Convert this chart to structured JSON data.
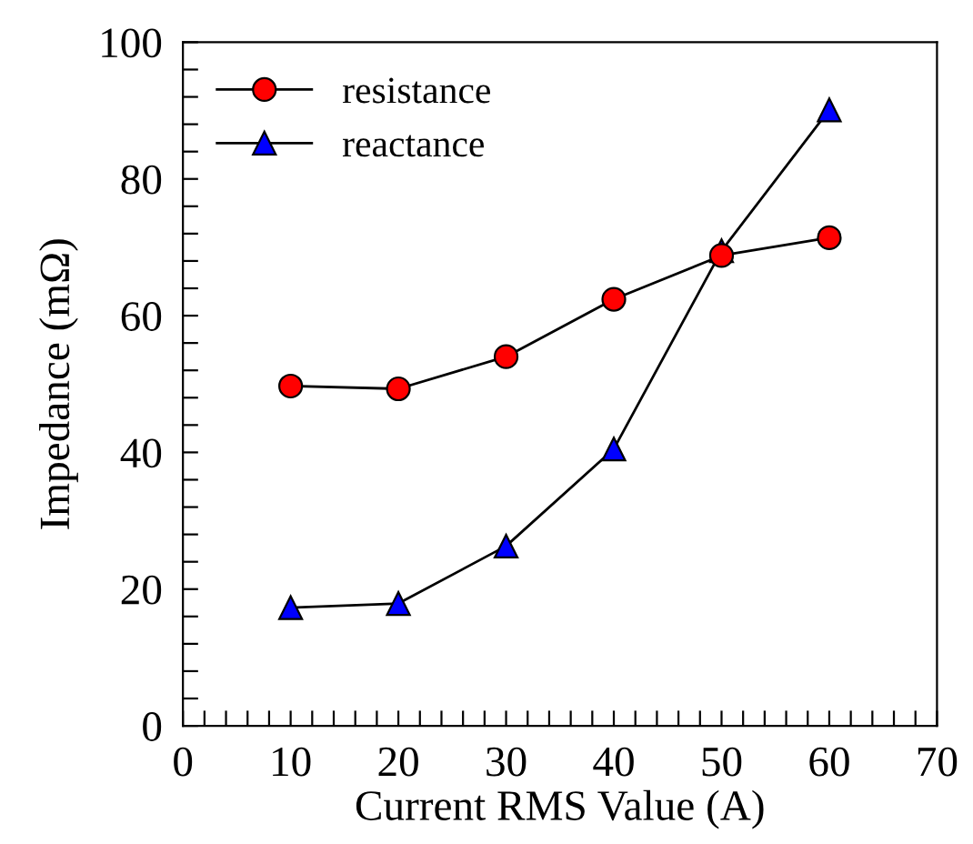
{
  "chart_data": {
    "type": "line",
    "xlabel": "Current RMS Value (A)",
    "ylabel": "Impedance (mΩ)",
    "x": [
      10,
      20,
      30,
      40,
      50,
      60
    ],
    "series": [
      {
        "name": "resistance",
        "color": "#ff0000",
        "marker": "circle",
        "values": [
          49.7,
          49.3,
          54.0,
          62.4,
          68.8,
          71.4
        ]
      },
      {
        "name": "reactance",
        "color": "#0000ff",
        "marker": "triangle",
        "values": [
          17.3,
          17.9,
          26.3,
          40.5,
          69.5,
          90.1
        ]
      }
    ],
    "xlim": [
      0,
      70
    ],
    "xticks": [
      0,
      {
        "value": 2,
        "label": null
      },
      {
        "value": 4,
        "label": null
      },
      {
        "value": 6,
        "label": null
      },
      {
        "value": 8,
        "label": null
      },
      10,
      {
        "value": 12,
        "label": null
      },
      {
        "value": 14,
        "label": null
      },
      {
        "value": 16,
        "label": null
      },
      {
        "value": 18,
        "label": null
      },
      20,
      {
        "value": 22,
        "label": null
      },
      {
        "value": 24,
        "label": null
      },
      {
        "value": 26,
        "label": null
      },
      {
        "value": 28,
        "label": null
      },
      30,
      {
        "value": 32,
        "label": null
      },
      {
        "value": 34,
        "label": null
      },
      {
        "value": 36,
        "label": null
      },
      {
        "value": 38,
        "label": null
      },
      40,
      {
        "value": 42,
        "label": null
      },
      {
        "value": 44,
        "label": null
      },
      {
        "value": 46,
        "label": null
      },
      {
        "value": 48,
        "label": null
      },
      50,
      {
        "value": 52,
        "label": null
      },
      {
        "value": 54,
        "label": null
      },
      {
        "value": 56,
        "label": null
      },
      {
        "value": 58,
        "label": null
      },
      60,
      {
        "value": 62,
        "label": null
      },
      {
        "value": 64,
        "label": null
      },
      {
        "value": 66,
        "label": null
      },
      {
        "value": 68,
        "label": null
      },
      70
    ],
    "ylim": [
      0,
      100
    ],
    "yticks": [
      0,
      {
        "value": 4,
        "label": null
      },
      {
        "value": 8,
        "label": null
      },
      {
        "value": 12,
        "label": null
      },
      {
        "value": 16,
        "label": null
      },
      20,
      {
        "value": 24,
        "label": null
      },
      {
        "value": 28,
        "label": null
      },
      {
        "value": 32,
        "label": null
      },
      {
        "value": 36,
        "label": null
      },
      40,
      {
        "value": 44,
        "label": null
      },
      {
        "value": 48,
        "label": null
      },
      {
        "value": 52,
        "label": null
      },
      {
        "value": 56,
        "label": null
      },
      60,
      {
        "value": 64,
        "label": null
      },
      {
        "value": 68,
        "label": null
      },
      {
        "value": 72,
        "label": null
      },
      {
        "value": 76,
        "label": null
      },
      80,
      {
        "value": 84,
        "label": null
      },
      {
        "value": 88,
        "label": null
      },
      {
        "value": 92,
        "label": null
      },
      {
        "value": 96,
        "label": null
      },
      100
    ],
    "grid": false,
    "legend": "top left",
    "line_style": "solid"
  }
}
